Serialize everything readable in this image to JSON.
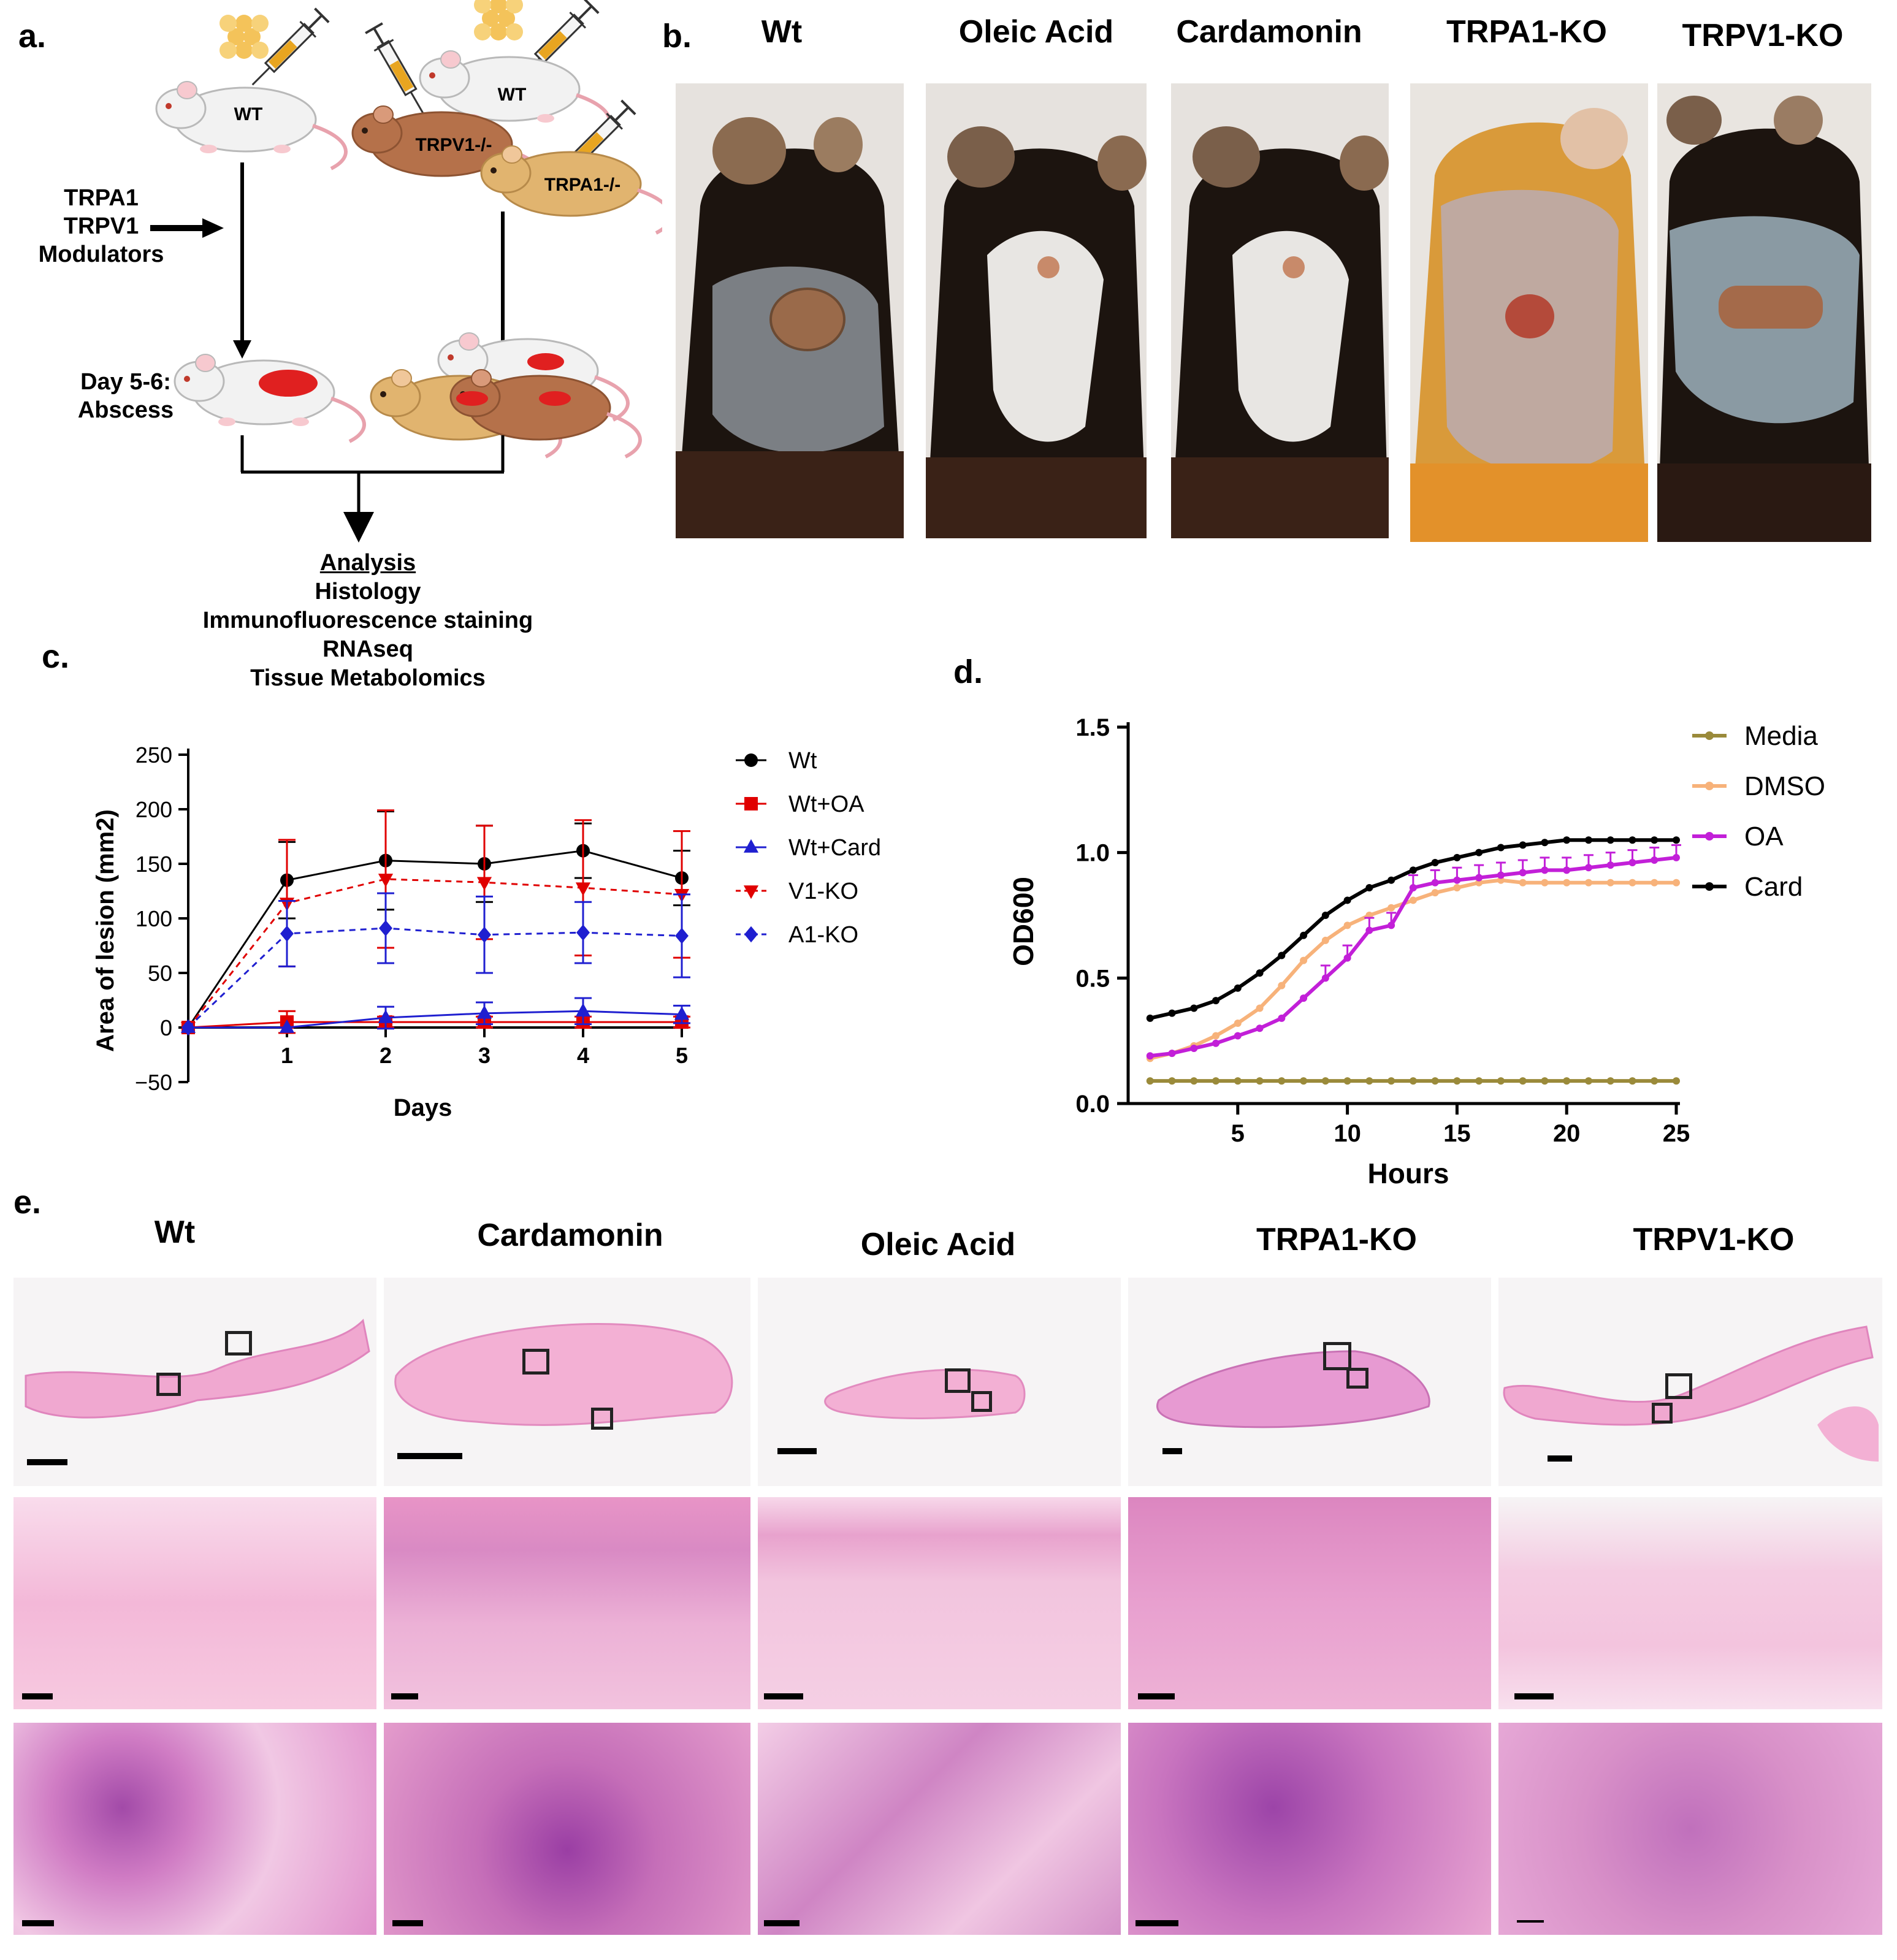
{
  "panel_labels": {
    "a": "a.",
    "b": "b.",
    "c": "c.",
    "d": "d.",
    "e": "e."
  },
  "panel_a": {
    "mice": [
      "WT",
      "WT",
      "TRPV1-/-",
      "TRPA1-/-"
    ],
    "modulators": [
      "TRPA1",
      "TRPV1",
      "Modulators"
    ],
    "day_label": [
      "Day 5-6:",
      "Abscess"
    ],
    "analysis_title": "Analysis",
    "analysis_items": [
      "Histology",
      "Immunofluorescence staining",
      "RNAseq",
      "Tissue Metabolomics"
    ]
  },
  "panel_b": {
    "columns": [
      "Wt",
      "Oleic Acid",
      "Cardamonin",
      "TRPA1-KO",
      "TRPV1-KO"
    ]
  },
  "panel_e": {
    "columns": [
      "Wt",
      "Cardamonin",
      "Oleic Acid",
      "TRPA1-KO",
      "TRPV1-KO"
    ]
  },
  "colors": {
    "wt": "#000000",
    "oa": "#e00000",
    "card_c": "#1f1fd0",
    "v1ko": "#e00000",
    "a1ko": "#1f1fd0",
    "media": "#9a8a3a",
    "dmso": "#f7b27a",
    "oa_d": "#c21fd8",
    "card_d": "#000000",
    "skin": "#f4b6d6",
    "stain": "#e07ac0",
    "nuclei": "#8a2fa0"
  },
  "chart_data": [
    {
      "type": "line",
      "panel": "c",
      "xlabel": "Days",
      "ylabel": "Area of lesion (mm2)",
      "x": [
        0,
        1,
        2,
        3,
        4,
        5
      ],
      "xticks": [
        "1",
        "2",
        "3",
        "4",
        "5"
      ],
      "yticks": [
        "250",
        "200",
        "150",
        "100",
        "50",
        "0",
        "−50"
      ],
      "ylim": [
        -50,
        250
      ],
      "legend_position": "right",
      "series": [
        {
          "name": "Wt",
          "values": [
            0,
            135,
            153,
            150,
            162,
            137
          ],
          "err": [
            0,
            35,
            45,
            35,
            25,
            25
          ],
          "marker": "circle",
          "dash": false,
          "color": "#000000"
        },
        {
          "name": "Wt+OA",
          "values": [
            0,
            5,
            5,
            5,
            5,
            5
          ],
          "err": [
            0,
            10,
            5,
            5,
            5,
            5
          ],
          "marker": "square",
          "dash": false,
          "color": "#e00000"
        },
        {
          "name": "Wt+Card",
          "values": [
            0,
            0,
            9,
            13,
            15,
            12
          ],
          "err": [
            0,
            0,
            10,
            10,
            12,
            8
          ],
          "marker": "triangle-up",
          "dash": false,
          "color": "#1f1fd0"
        },
        {
          "name": "V1-KO",
          "values": [
            0,
            114,
            136,
            133,
            128,
            122
          ],
          "err": [
            0,
            58,
            63,
            52,
            62,
            58
          ],
          "marker": "triangle-down",
          "dash": true,
          "color": "#e00000"
        },
        {
          "name": "A1-KO",
          "values": [
            0,
            86,
            91,
            85,
            87,
            84
          ],
          "err": [
            0,
            30,
            32,
            35,
            28,
            38
          ],
          "marker": "diamond",
          "dash": true,
          "color": "#1f1fd0"
        }
      ]
    },
    {
      "type": "line",
      "panel": "d",
      "xlabel": "Hours",
      "ylabel": "OD600",
      "x": [
        1,
        2,
        3,
        4,
        5,
        6,
        7,
        8,
        9,
        10,
        11,
        12,
        13,
        14,
        15,
        16,
        17,
        18,
        19,
        20,
        21,
        22,
        23,
        24,
        25
      ],
      "xticks": [
        "5",
        "10",
        "15",
        "20",
        "25"
      ],
      "yticks": [
        "1.5",
        "1.0",
        "0.5",
        "0.0"
      ],
      "ylim": [
        0,
        1.5
      ],
      "xlim": [
        0,
        25
      ],
      "legend_position": "top-right",
      "series": [
        {
          "name": "Media",
          "values": [
            0.09,
            0.09,
            0.09,
            0.09,
            0.09,
            0.09,
            0.09,
            0.09,
            0.09,
            0.09,
            0.09,
            0.09,
            0.09,
            0.09,
            0.09,
            0.09,
            0.09,
            0.09,
            0.09,
            0.09,
            0.09,
            0.09,
            0.09,
            0.09,
            0.09
          ],
          "color": "#9a8a3a"
        },
        {
          "name": "DMSO",
          "values": [
            0.18,
            0.2,
            0.23,
            0.27,
            0.32,
            0.38,
            0.47,
            0.57,
            0.65,
            0.71,
            0.75,
            0.78,
            0.81,
            0.84,
            0.86,
            0.88,
            0.89,
            0.88,
            0.88,
            0.88,
            0.88,
            0.88,
            0.88,
            0.88,
            0.88
          ],
          "color": "#f7b27a"
        },
        {
          "name": "OA",
          "values": [
            0.19,
            0.2,
            0.22,
            0.24,
            0.27,
            0.3,
            0.34,
            0.42,
            0.5,
            0.58,
            0.69,
            0.71,
            0.86,
            0.88,
            0.89,
            0.9,
            0.91,
            0.92,
            0.93,
            0.93,
            0.94,
            0.95,
            0.96,
            0.97,
            0.98
          ],
          "color": "#c21fd8"
        },
        {
          "name": "Card",
          "values": [
            0.34,
            0.36,
            0.38,
            0.41,
            0.46,
            0.52,
            0.59,
            0.67,
            0.75,
            0.81,
            0.86,
            0.89,
            0.93,
            0.96,
            0.98,
            1.0,
            1.02,
            1.03,
            1.04,
            1.05,
            1.05,
            1.05,
            1.05,
            1.05,
            1.05
          ],
          "color": "#000000"
        }
      ]
    }
  ]
}
